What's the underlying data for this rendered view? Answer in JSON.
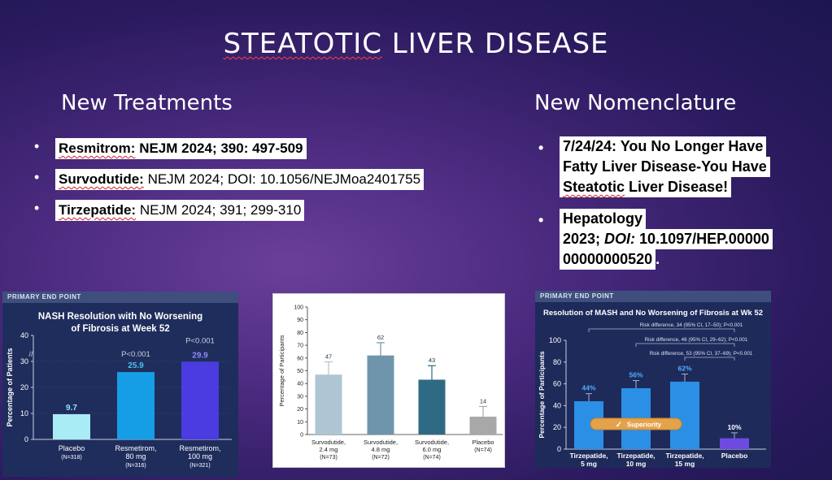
{
  "slide": {
    "title_main": "STEATOTIC",
    "title_rest": " LIVER DISEASE"
  },
  "left": {
    "heading": "New Treatments",
    "items": [
      {
        "name": "Resmitrom:",
        "ref": "  NEJM 2024; 390: 497-509"
      },
      {
        "name": "Survodutide:",
        "ref": "  NEJM 2024; DOI: 10.1056/NEJMoa2401755"
      },
      {
        "name": "Tirzepatide:",
        "ref": " NEJM 2024; 391; 299-310"
      }
    ]
  },
  "right": {
    "heading": "New Nomenclature",
    "item1": {
      "date": "7/24/24:",
      "line1": " You No Longer Have",
      "line2": "Fatty Liver Disease-You Have",
      "line3_a": "Steatotic",
      "line3_b": " Liver Disease!"
    },
    "item2": {
      "line1": "Hepatology",
      "line2_a": "2023; ",
      "line2_b": "DOI:",
      "line2_c": " 10.1097/HEP.00000",
      "line3": "00000000520",
      "line3_tail": "."
    }
  },
  "charts": {
    "chart1": {
      "band": "PRIMARY END POINT",
      "title_line1": "NASH Resolution with No Worsening",
      "title_line2": "of Fibrosis at Week 52",
      "ylabel": "Percentage of Patients",
      "yticks": [
        "0",
        "10",
        "20",
        "30",
        "40"
      ],
      "pvals": [
        "P<0.001",
        "P<0.001"
      ],
      "cat_names": [
        [
          "Placebo"
        ],
        [
          "Resmetirom,",
          "80 mg"
        ],
        [
          "Resmetirom,",
          "100 mg"
        ]
      ],
      "cat_ns": [
        "(N=318)",
        "(N=316)",
        "(N=321)"
      ],
      "value_labels": [
        "9.7",
        "25.9",
        "29.9"
      ],
      "colors": [
        "#a9ecf6",
        "#159ee6",
        "#4a3ce0"
      ]
    },
    "chart2": {
      "ylabel": "Percentage of Participants",
      "yticks": [
        "0",
        "10",
        "20",
        "30",
        "40",
        "50",
        "60",
        "70",
        "80",
        "90",
        "100"
      ],
      "cat_names": [
        [
          "Survodutide,",
          "2.4 mg"
        ],
        [
          "Survodutide,",
          "4.8 mg"
        ],
        [
          "Survodutide,",
          "6.0 mg"
        ],
        [
          "Placebo"
        ]
      ],
      "cat_ns": [
        "(N=73)",
        "(N=72)",
        "(N=74)",
        "(N=74)"
      ],
      "value_labels": [
        "47",
        "62",
        "43",
        "14"
      ],
      "colors": [
        "#aec6d4",
        "#6f95ac",
        "#2f6a84",
        "#a8a8a8"
      ]
    },
    "chart3": {
      "band": "PRIMARY END POINT",
      "title": "Resolution of MASH and No Worsening of Fibrosis at Wk 52",
      "ylabel": "Percentage of Participants",
      "yticks": [
        "0",
        "20",
        "40",
        "60",
        "80",
        "100"
      ],
      "risks": [
        "Risk difference, 34 (95% CI, 17–50); P<0.001",
        "Risk difference, 46 (95% CI, 29–62); P<0.001",
        "Risk difference, 53 (95% CI, 37–69); P<0.001"
      ],
      "superiority": "Superiority",
      "cat_names": [
        [
          "Tirzepatide,",
          "5 mg"
        ],
        [
          "Tirzepatide,",
          "10 mg"
        ],
        [
          "Tirzepatide,",
          "15 mg"
        ],
        [
          "Placebo"
        ]
      ],
      "value_labels": [
        "44%",
        "56%",
        "62%",
        "10%"
      ],
      "colors": [
        "#2b8fe6",
        "#2b8fe6",
        "#2b8fe6",
        "#6f4ae0"
      ]
    }
  },
  "chart_data": [
    {
      "type": "bar",
      "title": "NASH Resolution with No Worsening of Fibrosis at Week 52",
      "ylabel": "Percentage of Patients",
      "categories": [
        "Placebo",
        "Resmetirom, 80 mg",
        "Resmetirom, 100 mg"
      ],
      "values": [
        9.7,
        25.9,
        29.9
      ],
      "ylim": [
        0,
        40
      ]
    },
    {
      "type": "bar",
      "ylabel": "Percentage of Participants",
      "categories": [
        "Survodutide, 2.4 mg",
        "Survodutide, 4.8 mg",
        "Survodutide, 6.0 mg",
        "Placebo"
      ],
      "values": [
        47,
        62,
        43,
        14
      ],
      "error_upper": [
        57,
        72,
        54,
        22
      ],
      "ylim": [
        0,
        100
      ]
    },
    {
      "type": "bar",
      "title": "Resolution of MASH and No Worsening of Fibrosis at Wk 52",
      "ylabel": "Percentage of Participants",
      "categories": [
        "Tirzepatide, 5 mg",
        "Tirzepatide, 10 mg",
        "Tirzepatide, 15 mg",
        "Placebo"
      ],
      "values": [
        44,
        56,
        62,
        10
      ],
      "error_upper": [
        51,
        63,
        69,
        15
      ],
      "ylim": [
        0,
        100
      ]
    }
  ]
}
